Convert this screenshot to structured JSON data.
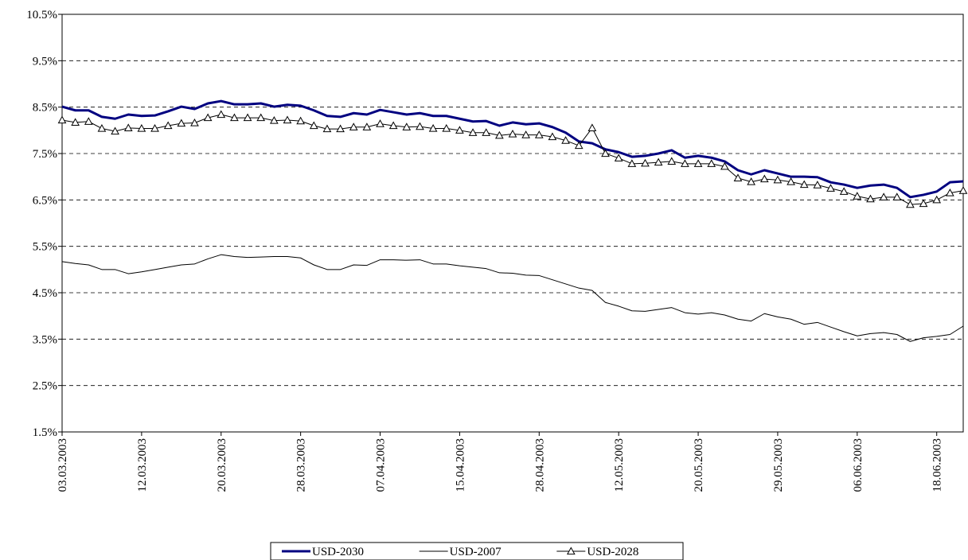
{
  "chart_data": {
    "type": "line",
    "categories": [
      "03.03.2003",
      null,
      null,
      null,
      null,
      null,
      "12.03.2003",
      null,
      null,
      null,
      null,
      null,
      "20.03.2003",
      null,
      null,
      null,
      null,
      null,
      "28.03.2003",
      null,
      null,
      null,
      null,
      null,
      "07.04.2003",
      null,
      null,
      null,
      null,
      null,
      "15.04.2003",
      null,
      null,
      null,
      null,
      null,
      "28.04.2003",
      null,
      null,
      null,
      null,
      null,
      "12.05.2003",
      null,
      null,
      null,
      null,
      null,
      "20.05.2003",
      null,
      null,
      null,
      null,
      null,
      "29.05.2003",
      null,
      null,
      null,
      null,
      null,
      "06.06.2003",
      null,
      null,
      null,
      null,
      null,
      "18.06.2003",
      null,
      null
    ],
    "series": [
      {
        "name": "USD-2030",
        "color": "#000080",
        "line_width": 3,
        "marker": null,
        "values": [
          8.51,
          8.43,
          8.43,
          8.29,
          8.25,
          8.34,
          8.31,
          8.32,
          8.41,
          8.51,
          8.46,
          8.58,
          8.63,
          8.56,
          8.56,
          8.58,
          8.51,
          8.55,
          8.53,
          8.43,
          8.31,
          8.29,
          8.37,
          8.34,
          8.44,
          8.39,
          8.34,
          8.37,
          8.31,
          8.31,
          8.25,
          8.19,
          8.2,
          8.1,
          8.17,
          8.13,
          8.15,
          8.07,
          7.95,
          7.76,
          7.72,
          7.59,
          7.53,
          7.43,
          7.45,
          7.5,
          7.57,
          7.41,
          7.45,
          7.41,
          7.33,
          7.14,
          7.05,
          7.14,
          7.07,
          7.0,
          7.0,
          6.99,
          6.88,
          6.83,
          6.76,
          6.81,
          6.83,
          6.76,
          6.56,
          6.61,
          6.68,
          6.88,
          6.9
        ]
      },
      {
        "name": "USD-2007",
        "color": "#000000",
        "line_width": 1,
        "marker": null,
        "values": [
          5.17,
          5.13,
          5.1,
          5.0,
          5.0,
          4.91,
          4.95,
          5.0,
          5.05,
          5.1,
          5.12,
          5.23,
          5.32,
          5.28,
          5.26,
          5.27,
          5.28,
          5.28,
          5.25,
          5.1,
          5.0,
          5.0,
          5.1,
          5.09,
          5.21,
          5.21,
          5.2,
          5.21,
          5.12,
          5.12,
          5.08,
          5.05,
          5.02,
          4.93,
          4.92,
          4.88,
          4.87,
          4.78,
          4.69,
          4.6,
          4.55,
          4.29,
          4.21,
          4.11,
          4.1,
          4.14,
          4.18,
          4.07,
          4.04,
          4.07,
          4.02,
          3.93,
          3.89,
          4.05,
          3.98,
          3.93,
          3.82,
          3.86,
          3.76,
          3.66,
          3.57,
          3.62,
          3.64,
          3.6,
          3.45,
          3.53,
          3.56,
          3.6,
          3.78
        ]
      },
      {
        "name": "USD-2028",
        "color": "#000000",
        "line_width": 1,
        "marker": "triangle",
        "values": [
          8.22,
          8.17,
          8.19,
          8.04,
          7.98,
          8.05,
          8.04,
          8.04,
          8.1,
          8.15,
          8.16,
          8.27,
          8.34,
          8.27,
          8.27,
          8.27,
          8.21,
          8.22,
          8.2,
          8.1,
          8.03,
          8.03,
          8.07,
          8.07,
          8.14,
          8.1,
          8.07,
          8.08,
          8.04,
          8.04,
          8.0,
          7.95,
          7.95,
          7.89,
          7.92,
          7.9,
          7.9,
          7.86,
          7.78,
          7.67,
          8.05,
          7.5,
          7.4,
          7.28,
          7.29,
          7.31,
          7.33,
          7.28,
          7.28,
          7.28,
          7.22,
          6.97,
          6.89,
          6.95,
          6.93,
          6.89,
          6.83,
          6.82,
          6.75,
          6.68,
          6.58,
          6.52,
          6.56,
          6.56,
          6.4,
          6.42,
          6.5,
          6.65,
          6.7
        ]
      }
    ],
    "ylim": [
      1.5,
      10.5
    ],
    "yticks": [
      {
        "value": 1.5,
        "label": "1.5%"
      },
      {
        "value": 2.5,
        "label": "2.5%"
      },
      {
        "value": 3.5,
        "label": "3.5%"
      },
      {
        "value": 4.5,
        "label": "4.5%"
      },
      {
        "value": 5.5,
        "label": "5.5%"
      },
      {
        "value": 6.5,
        "label": "6.5%"
      },
      {
        "value": 7.5,
        "label": "7.5%"
      },
      {
        "value": 8.5,
        "label": "8.5%"
      },
      {
        "value": 9.5,
        "label": "9.5%"
      },
      {
        "value": 10.5,
        "label": "10.5%"
      }
    ],
    "grid": true,
    "legend": "bottom"
  }
}
